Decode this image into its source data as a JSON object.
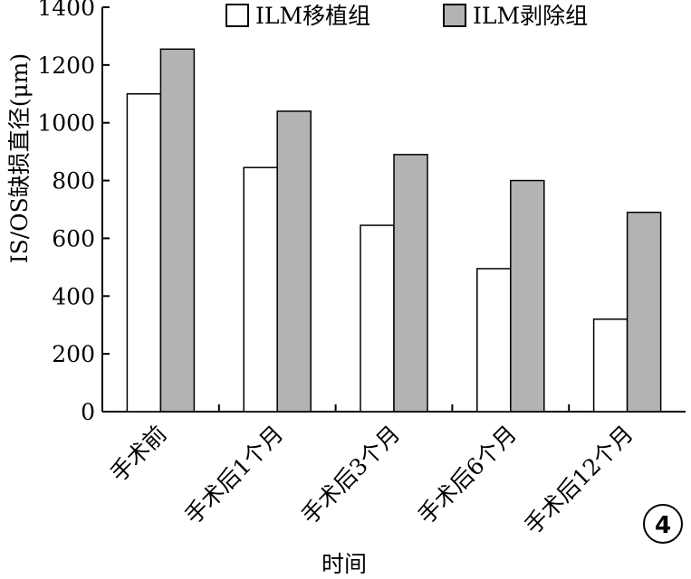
{
  "chart_data": {
    "type": "bar",
    "categories": [
      "手术前",
      "手术后1个月",
      "手术后3个月",
      "手术后6个月",
      "手术后12个月"
    ],
    "series": [
      {
        "name": "ILM移植组",
        "values": [
          1100,
          845,
          645,
          495,
          320
        ],
        "color": "#ffffff"
      },
      {
        "name": "ILM剥除组",
        "values": [
          1255,
          1040,
          890,
          800,
          690
        ],
        "color": "#b3b3b3"
      }
    ],
    "xlabel": "时间",
    "ylabel": "IS/OS缺损直径(μm)",
    "ylim": [
      0,
      1400
    ],
    "yticks": [
      0,
      200,
      400,
      600,
      800,
      1000,
      1200,
      1400
    ],
    "grid": false,
    "legend_position": "top"
  },
  "badge": "4"
}
